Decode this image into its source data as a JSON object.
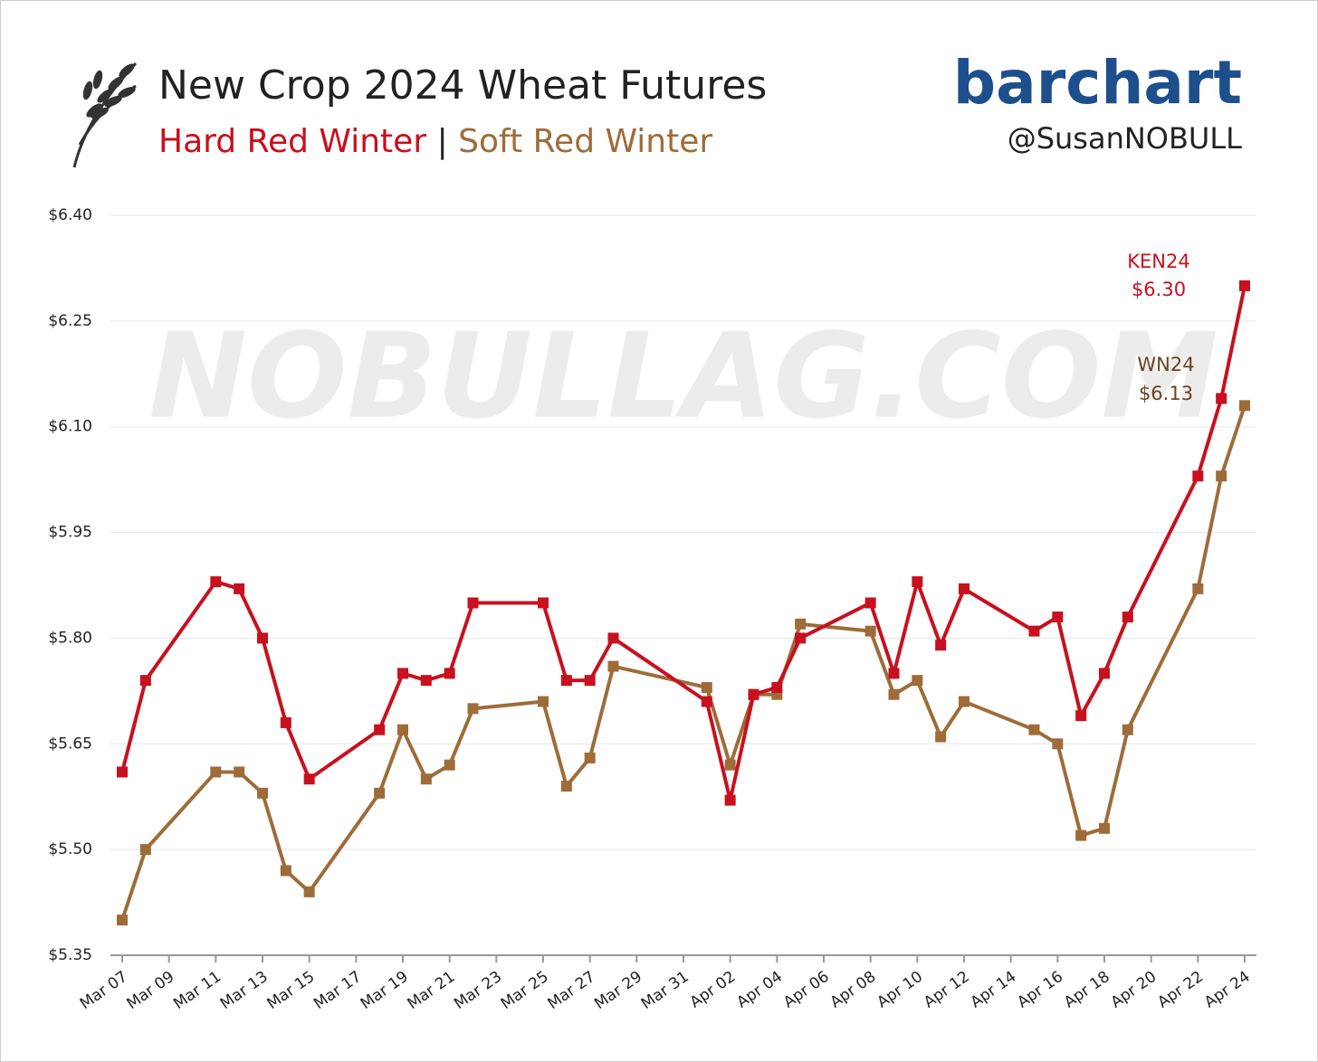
{
  "header": {
    "brand": "barchart",
    "handle": "@SusanNOBULL",
    "watermark": "NOBULLAG.COM"
  },
  "chart_data": {
    "type": "line",
    "title": "New Crop 2024 Wheat Futures",
    "subtitle_separator": "|",
    "x": [
      "Mar 07",
      "Mar 08",
      "Mar 11",
      "Mar 12",
      "Mar 13",
      "Mar 14",
      "Mar 15",
      "Mar 18",
      "Mar 19",
      "Mar 20",
      "Mar 21",
      "Mar 22",
      "Mar 25",
      "Mar 26",
      "Mar 27",
      "Mar 28",
      "Apr 01",
      "Apr 02",
      "Apr 03",
      "Apr 04",
      "Apr 05",
      "Apr 08",
      "Apr 09",
      "Apr 10",
      "Apr 11",
      "Apr 12",
      "Apr 15",
      "Apr 16",
      "Apr 17",
      "Apr 18",
      "Apr 19",
      "Apr 22",
      "Apr 23",
      "Apr 24"
    ],
    "series": [
      {
        "name": "Soft Red Winter",
        "color": "#9e6c38",
        "values": [
          5.4,
          5.5,
          5.61,
          5.61,
          5.58,
          5.47,
          5.44,
          5.58,
          5.67,
          5.6,
          5.62,
          5.7,
          5.71,
          5.59,
          5.63,
          5.76,
          5.73,
          5.62,
          5.72,
          5.72,
          5.82,
          5.81,
          5.72,
          5.74,
          5.66,
          5.71,
          5.67,
          5.65,
          5.52,
          5.53,
          5.67,
          5.87,
          6.03,
          6.13
        ]
      },
      {
        "name": "Hard Red Winter",
        "color": "#c8101e",
        "values": [
          5.61,
          5.74,
          5.88,
          5.87,
          5.8,
          5.68,
          5.6,
          5.67,
          5.75,
          5.74,
          5.75,
          5.85,
          5.85,
          5.74,
          5.74,
          5.8,
          5.71,
          5.57,
          5.72,
          5.73,
          5.8,
          5.85,
          5.75,
          5.88,
          5.79,
          5.87,
          5.81,
          5.83,
          5.69,
          5.75,
          5.83,
          6.03,
          6.14,
          6.3
        ]
      }
    ],
    "annotations": [
      {
        "text": "KEN24",
        "color": "#c8101e"
      },
      {
        "text": "$6.30",
        "color": "#c8101e"
      },
      {
        "text": "WN24",
        "color": "#6b4520"
      },
      {
        "text": "$6.13",
        "color": "#6b4520"
      }
    ],
    "xlim": [
      "Mar 07",
      "Apr 24"
    ],
    "xticks": [
      "Mar 07",
      "Mar 09",
      "Mar 11",
      "Mar 13",
      "Mar 15",
      "Mar 17",
      "Mar 19",
      "Mar 21",
      "Mar 23",
      "Mar 25",
      "Mar 27",
      "Mar 29",
      "Mar 31",
      "Apr 02",
      "Apr 04",
      "Apr 06",
      "Apr 08",
      "Apr 10",
      "Apr 12",
      "Apr 14",
      "Apr 16",
      "Apr 18",
      "Apr 20",
      "Apr 22",
      "Apr 24"
    ],
    "ylim": [
      5.35,
      6.4
    ],
    "yticks": [
      {
        "value": 5.35,
        "label": "$5.35"
      },
      {
        "value": 5.5,
        "label": "$5.50"
      },
      {
        "value": 5.65,
        "label": "$5.65"
      },
      {
        "value": 5.8,
        "label": "$5.80"
      },
      {
        "value": 5.95,
        "label": "$5.95"
      },
      {
        "value": 6.1,
        "label": "$6.10"
      },
      {
        "value": 6.25,
        "label": "$6.25"
      },
      {
        "value": 6.4,
        "label": "$6.40"
      }
    ],
    "grid": true
  }
}
